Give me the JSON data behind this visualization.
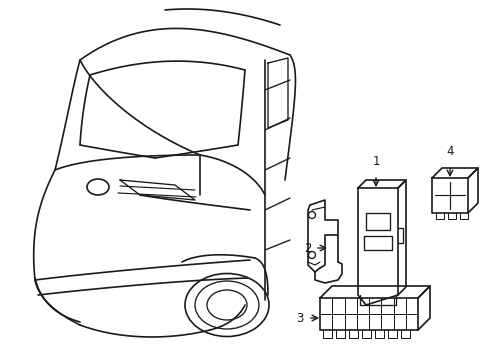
{
  "background_color": "#ffffff",
  "line_color": "#1a1a1a",
  "line_width": 1.2,
  "figsize": [
    4.89,
    3.6
  ],
  "dpi": 100
}
